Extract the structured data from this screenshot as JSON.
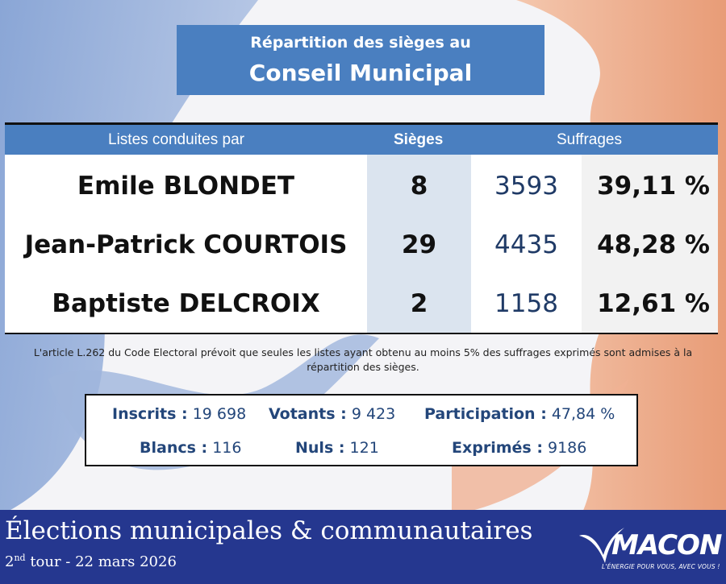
{
  "title": {
    "line1": "Répartition des sièges au",
    "line2": "Conseil Municipal"
  },
  "table": {
    "headers": {
      "lists": "Listes conduites par",
      "seats": "Sièges",
      "votes": "Suffrages"
    },
    "rows": [
      {
        "name": "Emile BLONDET",
        "seats": "8",
        "votes": "3593",
        "pct": "39,11 %"
      },
      {
        "name": "Jean-Patrick COURTOIS",
        "seats": "29",
        "votes": "4435",
        "pct": "48,28 %"
      },
      {
        "name": "Baptiste DELCROIX",
        "seats": "2",
        "votes": "1158",
        "pct": "12,61 %"
      }
    ]
  },
  "note": "L'article L.262 du Code Electoral prévoit que seules les listes ayant obtenu au moins 5% des suffrages exprimés sont admises à la répartition des sièges.",
  "stats": {
    "inscrits": {
      "label": "Inscrits :",
      "value": "19 698"
    },
    "votants": {
      "label": "Votants :",
      "value": "9 423"
    },
    "participation": {
      "label": "Participation :",
      "value": "47,84 %"
    },
    "blancs": {
      "label": "Blancs :",
      "value": "116"
    },
    "nuls": {
      "label": "Nuls :",
      "value": "121"
    },
    "exprimes": {
      "label": "Exprimés :",
      "value": "9186"
    }
  },
  "footer": {
    "title": "Élections municipales & communautaires",
    "round_number": "2",
    "round_sup": "nd",
    "round_rest": " tour - 22 mars 2026"
  },
  "logo": {
    "name": "MACON",
    "tagline": "L'ÉNERGIE POUR VOUS, AVEC VOUS !"
  },
  "colors": {
    "header_blue": "#4a7fc0",
    "footer_blue": "#25378f",
    "stat_text": "#23467a",
    "flag_red": "#e8a07e",
    "flag_blue": "#8aa6d6"
  }
}
